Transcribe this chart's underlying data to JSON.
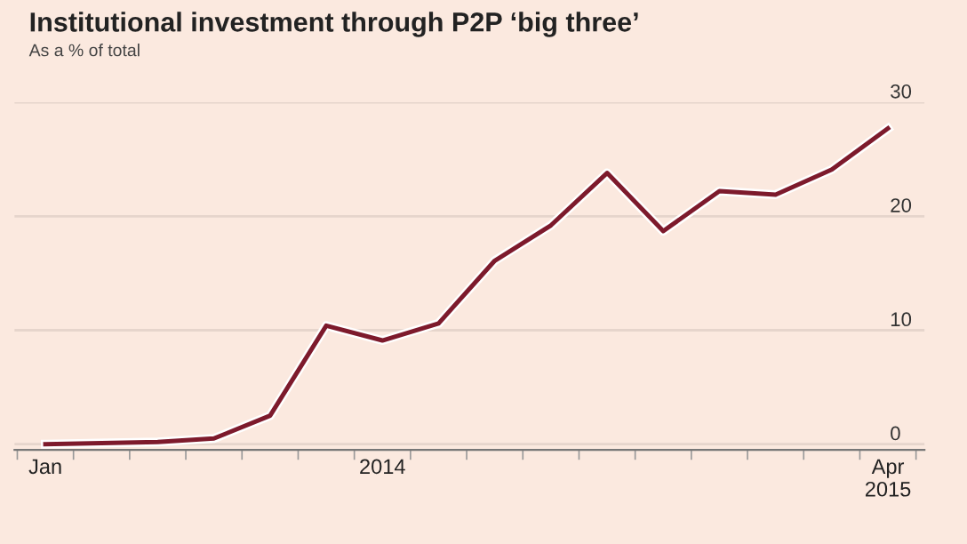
{
  "chart_data": {
    "type": "line",
    "title": "Institutional investment through P2P ‘big three’",
    "subtitle": "As a % of total",
    "categories": [
      "Jan",
      null,
      null,
      null,
      null,
      null,
      "2014",
      null,
      null,
      null,
      null,
      null,
      null,
      null,
      null,
      "Apr\n2015"
    ],
    "series": [
      {
        "color": "#7d1a2c",
        "values": [
          0,
          0.1,
          0.2,
          0.5,
          2.5,
          10.4,
          9.1,
          10.6,
          16.1,
          19.2,
          23.8,
          18.7,
          22.2,
          21.9,
          24.1,
          27.7
        ]
      }
    ],
    "ylim": [
      -0.5,
      30
    ],
    "yticks": [
      0,
      10,
      20,
      30
    ],
    "grid": "y",
    "legend": false,
    "marker": "none",
    "line_style": "solid"
  }
}
